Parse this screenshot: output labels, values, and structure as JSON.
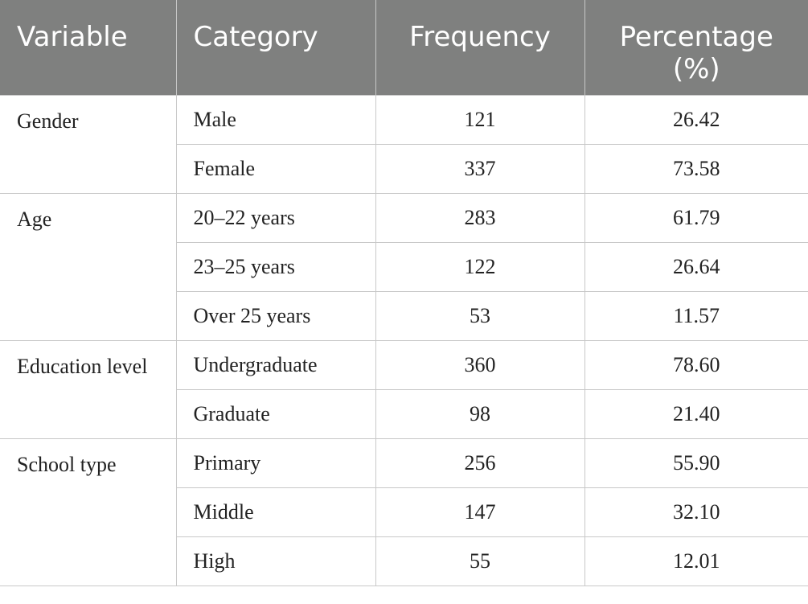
{
  "headers": {
    "variable": "Variable",
    "category": "Category",
    "frequency": "Frequency",
    "percentage": "Percentage\n(%)"
  },
  "groups": [
    {
      "variable": "Gender",
      "rows": [
        {
          "category": "Male",
          "frequency": "121",
          "percentage": "26.42"
        },
        {
          "category": "Female",
          "frequency": "337",
          "percentage": "73.58"
        }
      ]
    },
    {
      "variable": "Age",
      "rows": [
        {
          "category": "20–22 years",
          "frequency": "283",
          "percentage": "61.79"
        },
        {
          "category": "23–25 years",
          "frequency": "122",
          "percentage": "26.64"
        },
        {
          "category": "Over 25 years",
          "frequency": "53",
          "percentage": "11.57"
        }
      ]
    },
    {
      "variable": "Education level",
      "rows": [
        {
          "category": "Undergraduate",
          "frequency": "360",
          "percentage": "78.60"
        },
        {
          "category": "Graduate",
          "frequency": "98",
          "percentage": "21.40"
        }
      ]
    },
    {
      "variable": "School type",
      "rows": [
        {
          "category": "Primary",
          "frequency": "256",
          "percentage": "55.90"
        },
        {
          "category": "Middle",
          "frequency": "147",
          "percentage": "32.10"
        },
        {
          "category": "High",
          "frequency": "55",
          "percentage": "12.01"
        }
      ]
    }
  ],
  "colors": {
    "header_background": "#7f807f",
    "header_text": "#ffffff",
    "grid_line": "#c8c8c8",
    "body_text": "#222222"
  }
}
